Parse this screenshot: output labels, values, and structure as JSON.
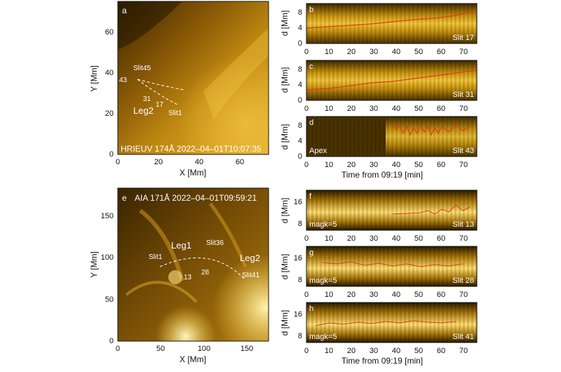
{
  "colors": {
    "aia_dark": "#2a1a00",
    "aia_mid": "#9a6a08",
    "aia_light": "#ffe070",
    "track": "#e23a1a",
    "frame": "#111111"
  },
  "panels": {
    "a": {
      "letter": "a",
      "caption": "HRIEUV 174Å 2022–04–01T10:07:35",
      "xlabel": "X [Mm]",
      "ylabel": "Y [Mm]",
      "xticks": [
        "0",
        "20",
        "40",
        "60"
      ],
      "yticks": [
        "0",
        "20",
        "40",
        "60"
      ],
      "labels": {
        "slit45": "Slit45",
        "n43": "43",
        "n31": "31",
        "n17": "17",
        "leg2": "Leg2",
        "slit1": "Slit1"
      }
    },
    "b": {
      "letter": "b",
      "slit": "Slit 17",
      "ylabel": "d [Mm]",
      "yticks": [
        "0",
        "4",
        "8"
      ],
      "xticks": [
        "0",
        "10",
        "20",
        "30",
        "40",
        "50",
        "60",
        "70"
      ]
    },
    "c": {
      "letter": "c",
      "slit": "Slit 31",
      "ylabel": "d [Mm]",
      "yticks": [
        "0",
        "4",
        "8"
      ],
      "xticks": [
        "0",
        "10",
        "20",
        "30",
        "40",
        "50",
        "60",
        "70"
      ]
    },
    "d": {
      "letter": "d",
      "slit": "Slit 43",
      "tag": "Apex",
      "ylabel": "d [Mm]",
      "yticks": [
        "0",
        "4",
        "8"
      ],
      "xticks": [
        "0",
        "10",
        "20",
        "30",
        "40",
        "50",
        "60",
        "70"
      ],
      "xlabel": "Time from 09:19 [min]"
    },
    "e": {
      "letter": "e",
      "caption": "AIA 171Å 2022–04–01T09:59:21",
      "xlabel": "X [Mm]",
      "ylabel": "Y [Mm]",
      "xticks": [
        "0",
        "50",
        "100",
        "150"
      ],
      "yticks": [
        "0",
        "50",
        "100",
        "150"
      ],
      "labels": {
        "leg1": "Leg1",
        "slit36": "Slit36",
        "leg2": "Leg2",
        "slit1": "Slit1",
        "n28": "28",
        "slit41": "Slit41",
        "n13": "13"
      }
    },
    "f": {
      "letter": "f",
      "slit": "Slit 13",
      "tag": "magk=5",
      "ylabel": "d [Mm]",
      "yticks": [
        "8",
        "16"
      ],
      "xticks": [
        "0",
        "10",
        "20",
        "30",
        "40",
        "50",
        "60",
        "70"
      ]
    },
    "g": {
      "letter": "g",
      "slit": "Slit 28",
      "tag": "magk=5",
      "ylabel": "d [Mm]",
      "yticks": [
        "8",
        "16"
      ],
      "xticks": [
        "0",
        "10",
        "20",
        "30",
        "40",
        "50",
        "60",
        "70"
      ]
    },
    "h": {
      "letter": "h",
      "slit": "Slit 41",
      "tag": "magk=5",
      "ylabel": "d [Mm]",
      "yticks": [
        "8",
        "16"
      ],
      "xticks": [
        "0",
        "10",
        "20",
        "30",
        "40",
        "50",
        "60",
        "70"
      ],
      "xlabel": "Time from 09:19 [min]"
    }
  }
}
